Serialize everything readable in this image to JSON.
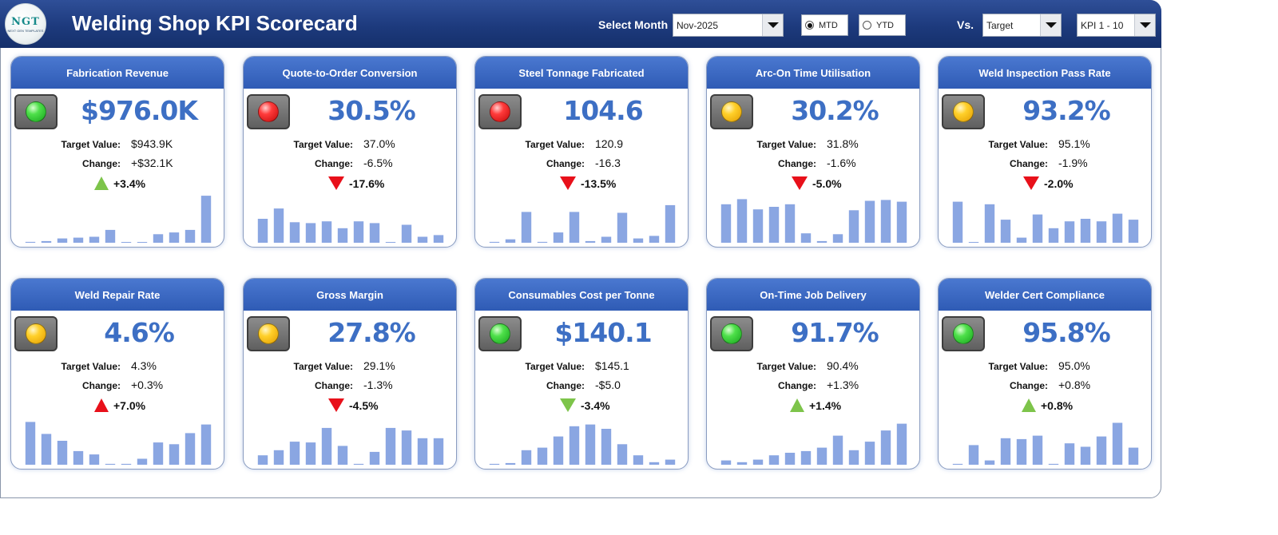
{
  "header": {
    "title": "Welding Shop KPI Scorecard",
    "logo_text": "NGT",
    "logo_subtext": "NEXT GEN TEMPLATES",
    "select_month_label": "Select Month",
    "month_value": "Nov-2025",
    "radio_mtd": "MTD",
    "radio_ytd": "YTD",
    "selected_radio": "MTD",
    "vs_label": "Vs.",
    "vs_value": "Target",
    "kpi_range_value": "KPI 1 - 10"
  },
  "labels": {
    "target": "Target Value:",
    "change": "Change:"
  },
  "colors": {
    "header_bg": "#1d3a7d",
    "card_head": "#2f5bb5",
    "big_value": "#3d6fc4",
    "bar": "#8aa6e2",
    "up_green": "#7dc44a",
    "down_red": "#e8101a"
  },
  "kpis": [
    {
      "name": "Fabrication Revenue",
      "status": "green",
      "value": "$976.0K",
      "target": "$943.9K",
      "change": "+$32.1K",
      "pct": "+3.4%",
      "direction": "up",
      "arrow_color": "green",
      "bars": [
        1,
        2,
        5,
        6,
        7,
        15,
        0,
        0,
        10,
        12,
        15,
        55
      ]
    },
    {
      "name": "Quote-to-Order Conversion",
      "status": "red",
      "value": "30.5%",
      "target": "37.0%",
      "change": "-6.5%",
      "pct": "-17.6%",
      "direction": "down",
      "arrow_color": "red",
      "bars": [
        28,
        40,
        24,
        23,
        25,
        17,
        25,
        23,
        0,
        21,
        7,
        9
      ]
    },
    {
      "name": "Steel Tonnage Fabricated",
      "status": "red",
      "value": "104.6",
      "target": "120.9",
      "change": "-16.3",
      "pct": "-13.5%",
      "direction": "down",
      "arrow_color": "red",
      "bars": [
        1,
        4,
        36,
        1,
        12,
        36,
        2,
        7,
        35,
        5,
        8,
        44
      ]
    },
    {
      "name": "Arc-On Time Utilisation",
      "status": "yellow",
      "value": "30.2%",
      "target": "31.8%",
      "change": "-1.6%",
      "pct": "-5.0%",
      "direction": "down",
      "arrow_color": "red",
      "bars": [
        45,
        51,
        39,
        42,
        45,
        11,
        2,
        10,
        38,
        49,
        50,
        48
      ]
    },
    {
      "name": "Weld Inspection Pass Rate",
      "status": "yellow",
      "value": "93.2%",
      "target": "95.1%",
      "change": "-1.9%",
      "pct": "-2.0%",
      "direction": "down",
      "arrow_color": "red",
      "bars": [
        48,
        0,
        45,
        27,
        6,
        33,
        17,
        25,
        28,
        25,
        34,
        27
      ]
    },
    {
      "name": "Weld Repair Rate",
      "status": "yellow",
      "value": "4.6%",
      "target": "4.3%",
      "change": "+0.3%",
      "pct": "+7.0%",
      "direction": "up",
      "arrow_color": "red",
      "bars": [
        50,
        36,
        28,
        16,
        12,
        1,
        1,
        7,
        26,
        24,
        37,
        47
      ]
    },
    {
      "name": "Gross Margin",
      "status": "yellow",
      "value": "27.8%",
      "target": "29.1%",
      "change": "-1.3%",
      "pct": "-4.5%",
      "direction": "down",
      "arrow_color": "red",
      "bars": [
        11,
        17,
        27,
        26,
        43,
        22,
        1,
        15,
        43,
        40,
        31,
        31
      ]
    },
    {
      "name": "Consumables Cost per Tonne",
      "status": "green",
      "value": "$140.1",
      "target": "$145.1",
      "change": "-$5.0",
      "pct": "-3.4%",
      "direction": "down",
      "arrow_color": "green",
      "bars": [
        1,
        2,
        17,
        20,
        33,
        45,
        47,
        42,
        24,
        11,
        3,
        6
      ]
    },
    {
      "name": "On-Time Job Delivery",
      "status": "green",
      "value": "91.7%",
      "target": "90.4%",
      "change": "+1.3%",
      "pct": "+1.4%",
      "direction": "up",
      "arrow_color": "green",
      "bars": [
        5,
        3,
        6,
        11,
        14,
        16,
        20,
        34,
        17,
        27,
        40,
        48
      ]
    },
    {
      "name": "Welder Cert Compliance",
      "status": "green",
      "value": "95.8%",
      "target": "95.0%",
      "change": "+0.8%",
      "pct": "+0.8%",
      "direction": "up",
      "arrow_color": "green",
      "bars": [
        1,
        23,
        5,
        31,
        30,
        34,
        1,
        25,
        21,
        33,
        49,
        20
      ]
    }
  ]
}
